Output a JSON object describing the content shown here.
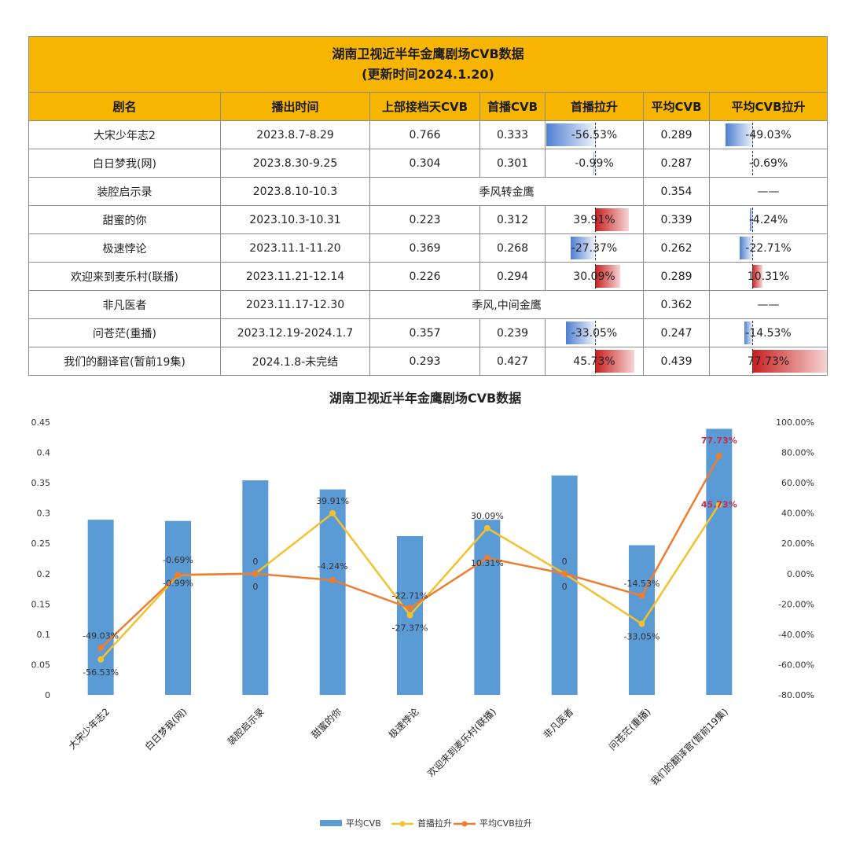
{
  "table": {
    "title_line1": "湖南卫视近半年金鹰剧场CVB数据",
    "title_line2": "(更新时间2024.1.20)",
    "headers": [
      "剧名",
      "播出时间",
      "上部接档天CVB",
      "首播CVB",
      "首播拉升",
      "平均CVB",
      "平均CVB拉升"
    ],
    "rows": [
      {
        "name": "大宋少年志2",
        "time": "2023.8.7-8.29",
        "prev": "0.766",
        "first": "0.333",
        "rise": "-56.53%",
        "rise_val": -56.53,
        "avg": "0.289",
        "avg_rise": "-49.03%",
        "avg_rise_val": -49.03
      },
      {
        "name": "白日梦我(网)",
        "time": "2023.8.30-9.25",
        "prev": "0.304",
        "first": "0.301",
        "rise": "-0.99%",
        "rise_val": -0.99,
        "avg": "0.287",
        "avg_rise": "-0.69%",
        "avg_rise_val": -0.69
      },
      {
        "name": "装腔启示录",
        "time": "2023.8.10-10.3",
        "merged": "季风转金鹰",
        "avg": "0.354",
        "avg_rise": "——"
      },
      {
        "name": "甜蜜的你",
        "time": "2023.10.3-10.31",
        "prev": "0.223",
        "first": "0.312",
        "rise": "39.91%",
        "rise_val": 39.91,
        "avg": "0.339",
        "avg_rise": "-4.24%",
        "avg_rise_val": -4.24
      },
      {
        "name": "极速悖论",
        "time": "2023.11.1-11.20",
        "prev": "0.369",
        "first": "0.268",
        "rise": "-27.37%",
        "rise_val": -27.37,
        "avg": "0.262",
        "avg_rise": "-22.71%",
        "avg_rise_val": -22.71
      },
      {
        "name": "欢迎来到麦乐村(联播)",
        "time": "2023.11.21-12.14",
        "prev": "0.226",
        "first": "0.294",
        "rise": "30.09%",
        "rise_val": 30.09,
        "avg": "0.289",
        "avg_rise": "10.31%",
        "avg_rise_val": 10.31
      },
      {
        "name": "非凡医者",
        "time": "2023.11.17-12.30",
        "merged": "季风,中间金鹰",
        "avg": "0.362",
        "avg_rise": "——"
      },
      {
        "name": "问苍茫(重播)",
        "time": "2023.12.19-2024.1.7",
        "prev": "0.357",
        "first": "0.239",
        "rise": "-33.05%",
        "rise_val": -33.05,
        "avg": "0.247",
        "avg_rise": "-14.53%",
        "avg_rise_val": -14.53
      },
      {
        "name": "我们的翻译官(暂前19集)",
        "time": "2024.1.8-未完结",
        "prev": "0.293",
        "first": "0.427",
        "rise": "45.73%",
        "rise_val": 45.73,
        "avg": "0.439",
        "avg_rise": "77.73%",
        "avg_rise_val": 77.73
      }
    ]
  },
  "chart_data": {
    "type": "bar",
    "title": "湖南卫视近半年金鹰剧场CVB数据",
    "categories": [
      "大宋少年志2",
      "白日梦我(网)",
      "装腔启示录",
      "甜蜜的你",
      "极速悖论",
      "欢迎来到麦乐村(联播)",
      "非凡医者",
      "问苍茫(重播)",
      "我们的翻译官(暂前19集)"
    ],
    "series": [
      {
        "name": "平均CVB",
        "type": "bar",
        "axis": "left",
        "color": "#5b9bd5",
        "values": [
          0.289,
          0.287,
          0.354,
          0.339,
          0.262,
          0.289,
          0.362,
          0.247,
          0.439
        ]
      },
      {
        "name": "首播拉升",
        "type": "line",
        "axis": "right",
        "color": "#f2c12e",
        "values": [
          -56.53,
          -0.99,
          0,
          39.91,
          -27.37,
          30.09,
          0,
          -33.05,
          45.73
        ],
        "labels": [
          "-56.53%",
          "-0.99%",
          "0",
          "39.91%",
          "-27.37%",
          "30.09%",
          "0",
          "-33.05%",
          "45.73%"
        ]
      },
      {
        "name": "平均CVB拉升",
        "type": "line",
        "axis": "right",
        "color": "#ed7d31",
        "values": [
          -49.03,
          -0.69,
          0,
          -4.24,
          -22.71,
          10.31,
          0,
          -14.53,
          77.73
        ],
        "labels": [
          "-49.03%",
          "-0.69%",
          "0",
          "-4.24%",
          "-22.71%",
          "10.31%",
          "0",
          "-14.53%",
          "77.73%"
        ]
      }
    ],
    "ylim_left": [
      0,
      0.45
    ],
    "yticks_left": [
      "0.45",
      "0.4",
      "0.35",
      "0.3",
      "0.25",
      "0.2",
      "0.15",
      "0.1",
      "0.05",
      "0"
    ],
    "ylim_right": [
      -80,
      100
    ],
    "yticks_right": [
      "100.00%",
      "80.00%",
      "60.00%",
      "40.00%",
      "20.00%",
      "0.00%",
      "-20.00%",
      "-40.00%",
      "-60.00%",
      "-80.00%"
    ],
    "grid": false,
    "legend": "bottom"
  }
}
